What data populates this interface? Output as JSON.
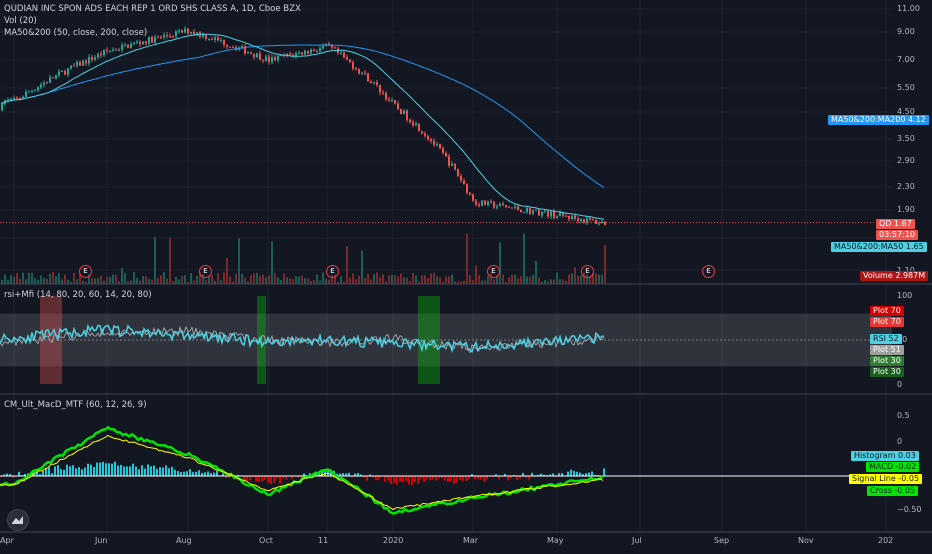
{
  "pane1": {
    "title": "QUDIAN INC SPON ADS EACH REP 1 ORD SHS CLASS A, 1D, Cboe BZX",
    "vol_label": "Vol (20)",
    "ma_label": "MA50&200 (50, close, 200, close)"
  },
  "pane2": {
    "label": "rsi+Mfi (14, 80, 20, 60, 14, 20, 80)"
  },
  "pane3": {
    "label": "CM_Ult_MacD_MTF (60, 12, 26, 9)"
  },
  "earnings_marker": "E",
  "price_axis_ticks": [
    "11.00",
    "9.00",
    "7.00",
    "5.50",
    "4.50",
    "3.50",
    "2.90",
    "2.30",
    "1.90",
    "1.50",
    "1.10"
  ],
  "rsi_axis_ticks": [
    "100",
    "50",
    "0"
  ],
  "macd_axis_ticks": [
    "0.5",
    "0",
    "−0.50"
  ],
  "x_axis_ticks": [
    "Apr",
    "Jun",
    "Aug",
    "Oct",
    "11",
    "2020",
    "Mar",
    "May",
    "Jul",
    "Sep",
    "Nov",
    "202"
  ],
  "tags": {
    "ma200": "MA50&200:MA200",
    "ma200_val": "4.12",
    "qd": "QD",
    "qd_val": "1.67",
    "countdown": "03:57:10",
    "ma50": "MA50&200:MA50",
    "ma50_val": "1.65",
    "volume": "Volume",
    "volume_val": "2.987M",
    "plot70a": "Plot",
    "plot70a_val": "70",
    "plot70b": "Plot",
    "plot70b_val": "70",
    "rsi": "RSI",
    "rsi_val": "52",
    "plot51": "Plot",
    "plot51_val": "51",
    "plot30a": "Plot",
    "plot30a_val": "30",
    "plot30b": "Plot",
    "plot30b_val": "30",
    "histogram": "Histogram",
    "histogram_val": "0.03",
    "macd": "MACD",
    "macd_val": "-0.02",
    "signal": "Signal Line",
    "signal_val": "-0.05",
    "cross": "Cross",
    "cross_val": "-0.05"
  },
  "colors": {
    "bg": "#131722",
    "up": "#26a69a",
    "down": "#ef5350",
    "ma200": "#2196f3",
    "ma50": "#4dd0e1",
    "rsi": "#4dd0e1",
    "macd_up": "#00e600",
    "macd_dn": "#ff0000",
    "signal": "#ffff00"
  },
  "chart_data": [
    {
      "type": "line",
      "x": [
        "Apr",
        "Jun",
        "Aug",
        "Oct",
        "11",
        "2020",
        "Mar",
        "May"
      ],
      "series": [
        {
          "values": [
            4.9,
            7.6,
            9.1,
            7.0,
            7.9,
            4.7,
            2.0,
            1.67
          ]
        }
      ],
      "ylim": [
        1.1,
        11.0
      ]
    },
    {
      "type": "line",
      "x": [
        "Apr",
        "Jun",
        "Aug",
        "Oct",
        "11",
        "2020",
        "Mar",
        "May"
      ],
      "series": [
        {
          "values": [
            52,
            62,
            55,
            48,
            50,
            46,
            42,
            52
          ]
        },
        {
          "values": [
            48,
            58,
            60,
            50,
            47,
            52,
            40,
            51
          ]
        }
      ],
      "ylim": [
        0,
        100
      ]
    },
    {
      "type": "line",
      "x": [
        "Apr",
        "Jun",
        "Aug",
        "Oct",
        "11",
        "2020",
        "Mar",
        "May"
      ],
      "series": [
        {
          "values": [
            -0.1,
            0.65,
            0.3,
            -0.25,
            0.1,
            -0.5,
            -0.3,
            -0.02
          ]
        },
        {
          "values": [
            -0.12,
            0.55,
            0.25,
            -0.2,
            0.05,
            -0.45,
            -0.28,
            -0.05
          ]
        }
      ],
      "ylim": [
        -0.6,
        0.9
      ]
    }
  ]
}
